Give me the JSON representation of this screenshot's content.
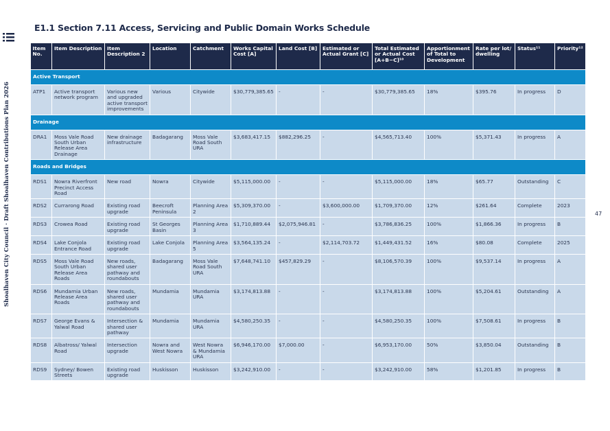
{
  "title": "E1.1 Section 7.11 Access, Servicing and Public Domain Works Schedule",
  "side_text": "Shoalhaven City Council · Draft Shoalhaven Contributions Plan 2026",
  "page_number": "47",
  "table": {
    "header": [
      "Item No.",
      "Item Description",
      "Item Description 2",
      "Location",
      "Catchment",
      "Works Capital Cost [A]",
      "Land Cost [B]",
      "Estimated or Actual Grant [C]",
      "Total Estimated or Actual Cost [A+B−C]¹⁰",
      "Apportionment of Total to Development",
      "Rate per lot/ dwelling",
      "Status¹¹",
      "Priority¹²"
    ],
    "sections": [
      {
        "title": "Active Transport",
        "rows": [
          [
            "ATP1",
            "Active transport network program",
            "Various new and upgraded active transport improvements",
            "Various",
            "Citywide",
            "$30,779,385.65",
            "-",
            "-",
            "$30,779,385.65",
            "18%",
            "$395.76",
            "In progress",
            "D"
          ]
        ]
      },
      {
        "title": "Drainage",
        "rows": [
          [
            "DRA1",
            "Moss Vale Road South Urban Release Area Drainage",
            "New drainage infrastructure",
            "Badagarang",
            "Moss Vale Road South URA",
            "$3,683,417.15",
            "$882,296.25",
            "-",
            "$4,565,713.40",
            "100%",
            "$5,371.43",
            "In progress",
            "A"
          ]
        ]
      },
      {
        "title": "Roads and Bridges",
        "rows": [
          [
            "RDS1",
            "Nowra Riverfront Precinct Access Road",
            "New road",
            "Nowra",
            "Citywide",
            "$5,115,000.00",
            "-",
            "-",
            "$5,115,000.00",
            "18%",
            "$65.77",
            "Outstanding",
            "C"
          ],
          [
            "RDS2",
            "Currarong Road",
            "Existing road upgrade",
            "Beecroft Peninsula",
            "Planning Area 2",
            "$5,309,370.00",
            "-",
            "$3,600,000.00",
            "$1,709,370.00",
            "12%",
            "$261.64",
            "Complete",
            "2023"
          ],
          [
            "RDS3",
            "Crowea Road",
            "Existing road upgrade",
            "St Georges Basin",
            "Planning Area 3",
            "$1,710,889.44",
            "$2,075,946.81",
            "-",
            "$3,786,836.25",
            "100%",
            "$1,866.36",
            "In progress",
            "B"
          ],
          [
            "RDS4",
            "Lake Conjola Entrance Road",
            "Existing road upgrade",
            "Lake Conjola",
            "Planning Area 5",
            "$3,564,135.24",
            "-",
            "$2,114,703.72",
            "$1,449,431.52",
            "16%",
            "$80.08",
            "Complete",
            "2025"
          ],
          [
            "RDS5",
            "Moss Vale Road South Urban Release Area Roads",
            "New roads, shared user pathway and roundabouts",
            "Badagarang",
            "Moss Vale Road South URA",
            "$7,648,741.10",
            "$457,829.29",
            "-",
            "$8,106,570.39",
            "100%",
            "$9,537.14",
            "In progress",
            "A"
          ],
          [
            "RDS6",
            "Mundamia Urban Release Area Roads",
            "New roads, shared user pathway and roundabouts",
            "Mundamia",
            "Mundamia URA",
            "$3,174,813.88",
            "-",
            "-",
            "$3,174,813.88",
            "100%",
            "$5,204.61",
            "Outstanding",
            "A"
          ],
          [
            "RDS7",
            "George Evans & Yalwal Road",
            "Intersection & shared user pathway",
            "Mundamia",
            "Mundamia URA",
            "$4,580,250.35",
            "-",
            "-",
            "$4,580,250.35",
            "100%",
            "$7,508.61",
            "In progress",
            "B"
          ],
          [
            "RDS8",
            "Albatross/ Yalwal Road",
            "Intersection upgrade",
            "Nowra and West Nowra",
            "West Nowra & Mundamia URA",
            "$6,946,170.00",
            "$7,000.00",
            "-",
            "$6,953,170.00",
            "50%",
            "$3,850.04",
            "Outstanding",
            "B"
          ],
          [
            "RDS9",
            "Sydney/ Bowen Streets",
            "Existing road upgrade",
            "Huskisson",
            "Huskisson",
            "$3,242,910.00",
            "-",
            "-",
            "$3,242,910.00",
            "58%",
            "$1,201.85",
            "In progress",
            "B"
          ]
        ]
      }
    ]
  }
}
